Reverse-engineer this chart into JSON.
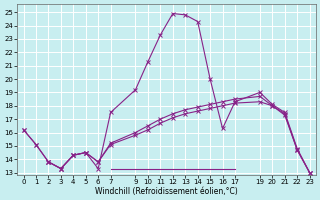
{
  "xlabel": "Windchill (Refroidissement éolien,°C)",
  "background_color": "#c8eef0",
  "grid_color": "#ffffff",
  "line_color": "#882288",
  "xlim": [
    -0.5,
    23.5
  ],
  "ylim": [
    12.8,
    25.6
  ],
  "yticks": [
    13,
    14,
    15,
    16,
    17,
    18,
    19,
    20,
    21,
    22,
    23,
    24,
    25
  ],
  "xticks": [
    0,
    1,
    2,
    3,
    4,
    5,
    6,
    7,
    9,
    10,
    11,
    12,
    13,
    14,
    15,
    16,
    17,
    19,
    20,
    21,
    22,
    23
  ],
  "series1_x": [
    0,
    1,
    2,
    3,
    4,
    5,
    6,
    7,
    9,
    10,
    11,
    12,
    13,
    14,
    15,
    16,
    17,
    19,
    20,
    21,
    22,
    23
  ],
  "series1_y": [
    16.2,
    15.1,
    13.8,
    13.3,
    14.3,
    14.5,
    13.3,
    17.5,
    19.2,
    21.3,
    23.3,
    24.9,
    24.8,
    24.3,
    20.0,
    16.3,
    18.3,
    19.0,
    18.1,
    17.5,
    14.8,
    13.0
  ],
  "series2_x": [
    2,
    3,
    4,
    5,
    6,
    7,
    9,
    10,
    11,
    12,
    13,
    14,
    15,
    16,
    17,
    19,
    20,
    21,
    22,
    23
  ],
  "series2_y": [
    13.8,
    13.3,
    14.3,
    14.5,
    13.8,
    15.1,
    15.8,
    16.2,
    16.7,
    17.1,
    17.4,
    17.6,
    17.8,
    18.0,
    18.2,
    18.3,
    18.0,
    17.4,
    14.7,
    13.0
  ],
  "series3_x": [
    0,
    1,
    2,
    3,
    4,
    5,
    6,
    7,
    9,
    10,
    11,
    12,
    13,
    14,
    15,
    16,
    17,
    19,
    20,
    21,
    22,
    23
  ],
  "series3_y": [
    16.2,
    15.1,
    13.8,
    13.3,
    14.3,
    14.5,
    13.8,
    15.2,
    16.0,
    16.5,
    17.0,
    17.4,
    17.7,
    17.9,
    18.1,
    18.3,
    18.5,
    18.7,
    18.0,
    17.3,
    14.7,
    13.0
  ],
  "series4_x": [
    7,
    17
  ],
  "series4_y": [
    13.3,
    13.3
  ]
}
